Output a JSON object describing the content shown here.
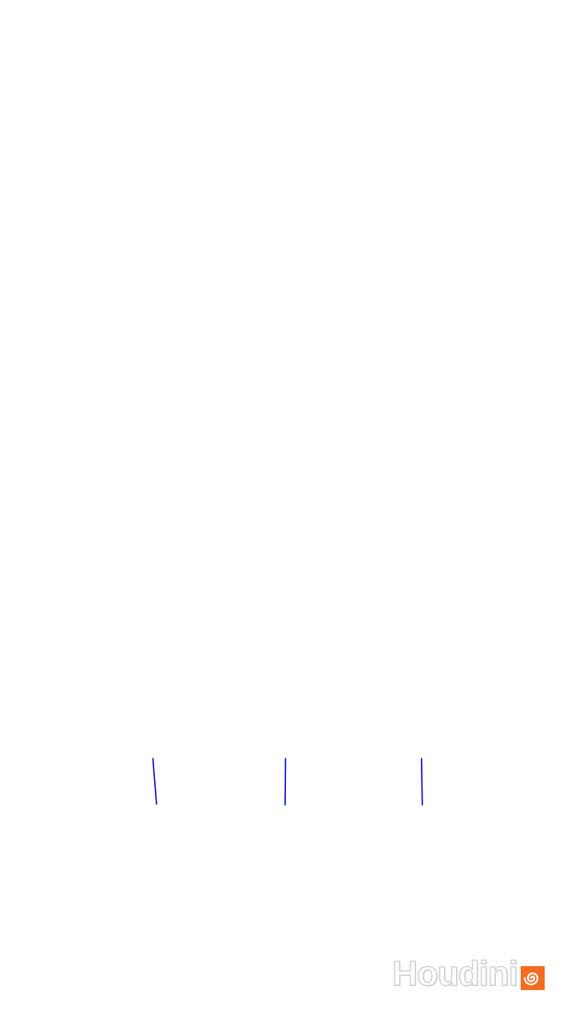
{
  "stroke_color": "#0000cc",
  "watermark": {
    "text": "Houdini",
    "logo_color": "#f26d21",
    "logo_icon": "houdini-swirl-icon"
  }
}
